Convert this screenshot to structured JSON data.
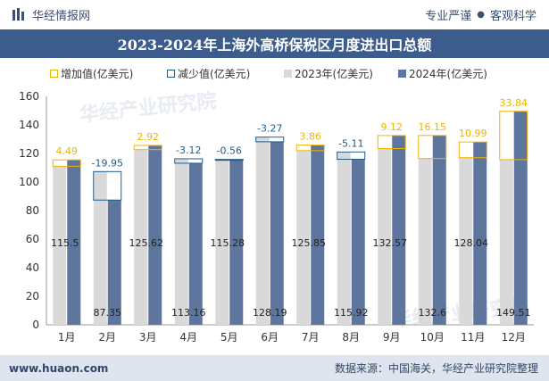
{
  "header": {
    "brand": "华经情报网",
    "slogan_left": "专业严谨",
    "slogan_right": "客观科学"
  },
  "title": "2023-2024年上海外高桥保税区月度进出口总额",
  "watermark": "华经产业研究院",
  "footer": {
    "site": "www.huaon.com",
    "source": "数据来源：中国海关，华经产业研究院整理"
  },
  "colors": {
    "title_bg": "#3c5c8e",
    "bar_2023": "#d9d9d9",
    "bar_2024": "#5e759e",
    "increase": "#f0b400",
    "decrease": "#1f5d8c"
  },
  "chart_data": {
    "type": "bar",
    "categories": [
      "1月",
      "2月",
      "3月",
      "4月",
      "5月",
      "6月",
      "7月",
      "8月",
      "9月",
      "10月",
      "11月",
      "12月"
    ],
    "ylim": [
      0,
      160
    ],
    "yticks": [
      0,
      20,
      40,
      60,
      80,
      100,
      120,
      140,
      160
    ],
    "legend_position": "top",
    "series": [
      {
        "name": "2023年(亿美元)",
        "values": [
          111.01,
          107.3,
          122.7,
          116.28,
          115.84,
          131.46,
          121.99,
          121.03,
          123.45,
          116.45,
          117.05,
          115.67
        ]
      },
      {
        "name": "2024年(亿美元)",
        "values": [
          115.5,
          87.35,
          125.62,
          113.16,
          115.28,
          128.19,
          125.85,
          115.92,
          132.57,
          132.6,
          128.04,
          149.51
        ]
      }
    ],
    "change_series": [
      {
        "name": "增加值(亿美元)",
        "type": "increase"
      },
      {
        "name": "减少值(亿美元)",
        "type": "decrease"
      }
    ],
    "changes": [
      4.49,
      -19.95,
      2.92,
      -3.12,
      -0.56,
      -3.27,
      3.86,
      -5.11,
      9.12,
      16.15,
      10.99,
      33.84
    ],
    "change_labels": [
      "4.49",
      "-19.95",
      "2.92",
      "-3.12",
      "-0.56",
      "-3.27",
      "3.86",
      "-5.11",
      "9.12",
      "16.15",
      "10.99",
      "33.84"
    ],
    "value_labels_2024": [
      "115.5",
      "87.35",
      "125.62",
      "113.16",
      "115.28",
      "128.19",
      "125.85",
      "115.92",
      "132.57",
      "132.6",
      "128.04",
      "149.51"
    ]
  }
}
